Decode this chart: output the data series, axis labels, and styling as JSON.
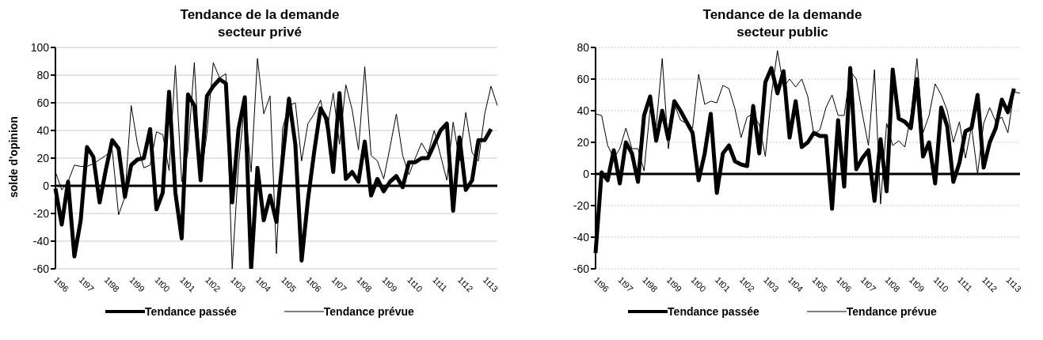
{
  "chart_data": [
    {
      "type": "line",
      "title": "Tendance de la demande secteur privé",
      "ylabel": "solde d'opinion",
      "categories": [
        "1t96",
        null,
        null,
        null,
        "1t97",
        null,
        null,
        null,
        "1t98",
        null,
        null,
        null,
        "1t99",
        null,
        null,
        null,
        "1t00",
        null,
        null,
        null,
        "1t01",
        null,
        null,
        null,
        "1t02",
        null,
        null,
        null,
        "1t03",
        null,
        null,
        null,
        "1t04",
        null,
        null,
        null,
        "1t05",
        null,
        null,
        null,
        "1t06",
        null,
        null,
        null,
        "1t07",
        null,
        null,
        null,
        "1t08",
        null,
        null,
        null,
        "1t09",
        null,
        null,
        null,
        "1t10",
        null,
        null,
        null,
        "1t11",
        null,
        null,
        null,
        "1t12",
        null,
        null,
        null,
        "1t13",
        null,
        null
      ],
      "series": [
        {
          "name": "Tendance passée",
          "color": "#000000",
          "values": [
            -2,
            -28,
            3,
            -51,
            -25,
            28,
            21,
            -12,
            12,
            33,
            27,
            -8,
            15,
            19,
            20,
            41,
            -17,
            -5,
            68,
            -5,
            -38,
            66,
            58,
            4,
            65,
            72,
            77,
            74,
            -12,
            41,
            64,
            -60,
            13,
            -25,
            -7,
            -26,
            20,
            63,
            30,
            -54,
            -10,
            25,
            56,
            48,
            10,
            67,
            5,
            10,
            3,
            32,
            -7,
            5,
            -4,
            3,
            7,
            -1,
            17,
            17,
            20,
            20,
            30,
            40,
            45,
            -18,
            35,
            -3,
            4,
            33,
            33,
            41,
            null
          ]
        },
        {
          "name": "Tendance prévue",
          "color": "#000000",
          "values": [
            10,
            -3,
            3,
            15,
            14,
            14,
            16,
            19,
            22,
            26,
            -21,
            -8,
            58,
            30,
            13,
            15,
            39,
            37,
            11,
            87,
            3,
            25,
            89,
            5,
            38,
            89,
            78,
            81,
            -60,
            15,
            60,
            10,
            92,
            52,
            65,
            -49,
            42,
            58,
            60,
            18,
            45,
            52,
            62,
            40,
            67,
            30,
            73,
            55,
            26,
            86,
            22,
            18,
            5,
            28,
            52,
            22,
            8,
            20,
            31,
            23,
            40,
            22,
            4,
            46,
            18,
            53,
            24,
            18,
            52,
            72,
            58
          ]
        }
      ],
      "ylim": [
        -60,
        100
      ],
      "yticks": [
        -60,
        -40,
        -20,
        0,
        20,
        40,
        60,
        80,
        100
      ],
      "grid": "y",
      "legend": "bottom",
      "marker": "none",
      "ref_lines": [
        {
          "axis": "y",
          "value": 0
        }
      ]
    },
    {
      "type": "line",
      "title": "Tendance de la demande secteur public",
      "categories": [
        "1t96",
        null,
        null,
        null,
        "1t97",
        null,
        null,
        null,
        "1t98",
        null,
        null,
        null,
        "1t99",
        null,
        null,
        null,
        "1t00",
        null,
        null,
        null,
        "1t01",
        null,
        null,
        null,
        "1t02",
        null,
        null,
        null,
        "1t03",
        null,
        null,
        null,
        "1t04",
        null,
        null,
        null,
        "1t05",
        null,
        null,
        null,
        "1t06",
        null,
        null,
        null,
        "1t07",
        null,
        null,
        null,
        "1t08",
        null,
        null,
        null,
        "1t09",
        null,
        null,
        null,
        "1t10",
        null,
        null,
        null,
        "1t11",
        null,
        null,
        null,
        "1t12",
        null,
        null,
        null,
        "1t13",
        null,
        null
      ],
      "series": [
        {
          "name": "Tendance passée",
          "color": "#000000",
          "values": [
            -50,
            1,
            -4,
            15,
            -6,
            20,
            13,
            -5,
            37,
            49,
            21,
            40,
            22,
            46,
            40,
            33,
            26,
            -4,
            13,
            38,
            -12,
            13,
            18,
            8,
            6,
            5,
            43,
            13,
            58,
            67,
            51,
            65,
            23,
            46,
            17,
            20,
            26,
            24,
            24,
            -22,
            34,
            -8,
            67,
            3,
            10,
            15,
            -17,
            22,
            -11,
            66,
            35,
            33,
            29,
            60,
            11,
            20,
            -6,
            42,
            30,
            -5,
            7,
            27,
            29,
            50,
            4,
            20,
            29,
            47,
            39,
            54,
            null
          ]
        },
        {
          "name": "Tendance prévue",
          "color": "#000000",
          "values": [
            38,
            37,
            18,
            10,
            16,
            29,
            16,
            16,
            2,
            41,
            30,
            73,
            16,
            44,
            34,
            32,
            29,
            63,
            44,
            46,
            45,
            56,
            54,
            41,
            23,
            36,
            38,
            31,
            11,
            50,
            78,
            55,
            60,
            55,
            60,
            49,
            25,
            28,
            42,
            50,
            37,
            37,
            65,
            60,
            38,
            18,
            66,
            -19,
            32,
            18,
            21,
            17,
            37,
            73,
            26,
            37,
            57,
            50,
            40,
            20,
            33,
            10,
            30,
            0,
            32,
            42,
            33,
            36,
            26,
            52,
            51
          ]
        }
      ],
      "ylim": [
        -60,
        80
      ],
      "yticks": [
        -60,
        -40,
        -20,
        0,
        20,
        40,
        60,
        80
      ],
      "grid": "y",
      "legend": "bottom",
      "marker": "none",
      "ref_lines": [
        {
          "axis": "y",
          "value": 0
        }
      ]
    }
  ]
}
